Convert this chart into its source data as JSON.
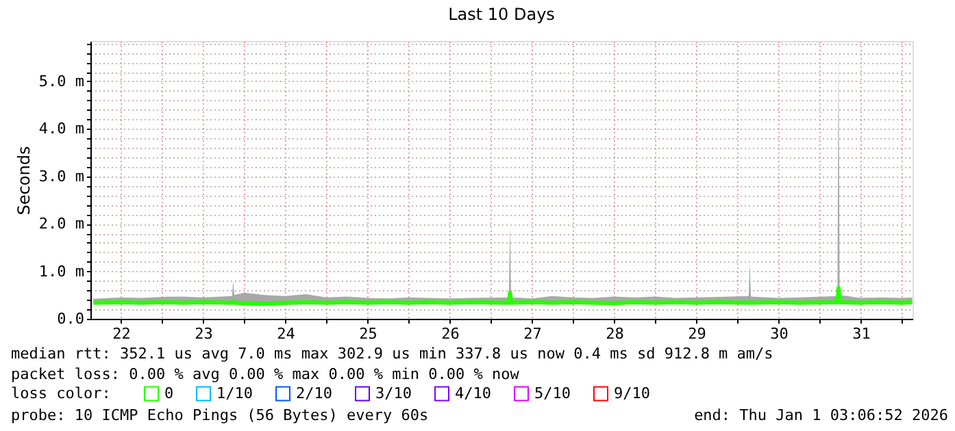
{
  "chart_data": {
    "type": "line",
    "title": "Last 10 Days",
    "ylabel": "Seconds",
    "x": [
      "2025-12-22T04:00",
      "2025-12-22T12:00",
      "2025-12-22T18:00",
      "2025-12-23T00:00",
      "2025-12-23T06:00",
      "2025-12-23T12:00",
      "2025-12-23T20:28",
      "2025-12-23T20:48",
      "2025-12-23T21:08",
      "2025-12-24T00:00",
      "2025-12-24T06:00",
      "2025-12-24T12:00",
      "2025-12-24T18:00",
      "2025-12-25T00:00",
      "2025-12-25T06:00",
      "2025-12-25T12:00",
      "2025-12-25T18:00",
      "2025-12-26T00:00",
      "2025-12-26T06:00",
      "2025-12-26T12:00",
      "2025-12-26T18:00",
      "2025-12-27T05:16",
      "2025-12-27T05:36",
      "2025-12-27T05:56",
      "2025-12-27T12:00",
      "2025-12-27T18:00",
      "2025-12-28T00:00",
      "2025-12-28T06:00",
      "2025-12-28T12:00",
      "2025-12-28T18:00",
      "2025-12-29T00:00",
      "2025-12-29T06:00",
      "2025-12-29T12:00",
      "2025-12-29T18:00",
      "2025-12-30T03:16",
      "2025-12-30T03:36",
      "2025-12-30T03:56",
      "2025-12-30T12:00",
      "2025-12-30T18:00",
      "2025-12-31T05:11",
      "2025-12-31T05:31",
      "2025-12-31T05:51",
      "2025-12-31T12:00",
      "2025-12-31T18:00",
      "2026-01-01T00:00",
      "2026-01-01T03:00"
    ],
    "series": [
      {
        "name": "0",
        "color": "#26ff00",
        "values": [
          0.34,
          0.35,
          0.34,
          0.35,
          0.34,
          0.35,
          0.34,
          0.36,
          0.34,
          0.33,
          0.32,
          0.34,
          0.35,
          0.34,
          0.35,
          0.34,
          0.35,
          0.34,
          0.35,
          0.34,
          0.35,
          0.34,
          0.55,
          0.34,
          0.35,
          0.34,
          0.35,
          0.34,
          0.33,
          0.35,
          0.34,
          0.35,
          0.34,
          0.35,
          0.34,
          0.35,
          0.34,
          0.35,
          0.34,
          0.35,
          0.65,
          0.35,
          0.34,
          0.35,
          0.34,
          0.35
        ],
        "lower": [
          0.3,
          0.31,
          0.3,
          0.31,
          0.3,
          0.31,
          0.3,
          0.31,
          0.3,
          0.28,
          0.27,
          0.29,
          0.3,
          0.3,
          0.31,
          0.3,
          0.31,
          0.3,
          0.31,
          0.3,
          0.31,
          0.3,
          0.32,
          0.3,
          0.31,
          0.3,
          0.31,
          0.3,
          0.29,
          0.31,
          0.3,
          0.31,
          0.3,
          0.31,
          0.3,
          0.31,
          0.3,
          0.31,
          0.3,
          0.31,
          0.33,
          0.31,
          0.3,
          0.31,
          0.3,
          0.31
        ],
        "upper": [
          0.42,
          0.45,
          0.44,
          0.46,
          0.47,
          0.45,
          0.48,
          0.8,
          0.5,
          0.55,
          0.5,
          0.48,
          0.52,
          0.45,
          0.47,
          0.44,
          0.43,
          0.45,
          0.44,
          0.43,
          0.44,
          0.45,
          1.95,
          0.45,
          0.43,
          0.48,
          0.45,
          0.44,
          0.47,
          0.45,
          0.47,
          0.44,
          0.45,
          0.46,
          0.48,
          1.18,
          0.47,
          0.44,
          0.45,
          0.48,
          5.78,
          0.5,
          0.44,
          0.45,
          0.44,
          0.45
        ]
      },
      {
        "name": "1/10",
        "color": "#00b8ff",
        "values": [
          null,
          null,
          null,
          null,
          null,
          null,
          null,
          null,
          null,
          null,
          null,
          null,
          null,
          null,
          null,
          null,
          null,
          null,
          null,
          null,
          null,
          null,
          null,
          null,
          null,
          null,
          null,
          null,
          null,
          null,
          null,
          null,
          null,
          null,
          null,
          null,
          null,
          null,
          null,
          null,
          null,
          null,
          null,
          null,
          null,
          null
        ]
      },
      {
        "name": "2/10",
        "color": "#0059ff",
        "values": [
          null,
          null,
          null,
          null,
          null,
          null,
          null,
          null,
          null,
          null,
          null,
          null,
          null,
          null,
          null,
          null,
          null,
          null,
          null,
          null,
          null,
          null,
          null,
          null,
          null,
          null,
          null,
          null,
          null,
          null,
          null,
          null,
          null,
          null,
          null,
          null,
          null,
          null,
          null,
          null,
          null,
          null,
          null,
          null,
          null,
          null
        ]
      },
      {
        "name": "3/10",
        "color": "#5e00ff",
        "values": [
          null,
          null,
          null,
          null,
          null,
          null,
          null,
          null,
          null,
          null,
          null,
          null,
          null,
          null,
          null,
          null,
          null,
          null,
          null,
          null,
          null,
          null,
          null,
          null,
          null,
          null,
          null,
          null,
          null,
          null,
          null,
          null,
          null,
          null,
          null,
          null,
          null,
          null,
          null,
          null,
          null,
          null,
          null,
          null,
          null,
          null
        ]
      },
      {
        "name": "4/10",
        "color": "#7e00ff",
        "values": [
          null,
          null,
          null,
          null,
          null,
          null,
          null,
          null,
          null,
          null,
          null,
          null,
          null,
          null,
          null,
          null,
          null,
          null,
          null,
          null,
          null,
          null,
          null,
          null,
          null,
          null,
          null,
          null,
          null,
          null,
          null,
          null,
          null,
          null,
          null,
          null,
          null,
          null,
          null,
          null,
          null,
          null,
          null,
          null,
          null,
          null
        ]
      },
      {
        "name": "5/10",
        "color": "#dd00ff",
        "values": [
          null,
          null,
          null,
          null,
          null,
          null,
          null,
          null,
          null,
          null,
          null,
          null,
          null,
          null,
          null,
          null,
          null,
          null,
          null,
          null,
          null,
          null,
          null,
          null,
          null,
          null,
          null,
          null,
          null,
          null,
          null,
          null,
          null,
          null,
          null,
          null,
          null,
          null,
          null,
          null,
          null,
          null,
          null,
          null,
          null,
          null
        ]
      },
      {
        "name": "9/10",
        "color": "#ff0000",
        "values": [
          null,
          null,
          null,
          null,
          null,
          null,
          null,
          null,
          null,
          null,
          null,
          null,
          null,
          null,
          null,
          null,
          null,
          null,
          null,
          null,
          null,
          null,
          null,
          null,
          null,
          null,
          null,
          null,
          null,
          null,
          null,
          null,
          null,
          null,
          null,
          null,
          null,
          null,
          null,
          null,
          null,
          null,
          null,
          null,
          null,
          null
        ]
      }
    ],
    "legend_title": "loss color:",
    "legend": "bottom",
    "xlim": [
      "2025-12-22T03:07",
      "2026-01-01T03:07"
    ],
    "xticks": [
      {
        "value": "2025-12-22T12:00",
        "label": "22"
      },
      {
        "value": "2025-12-23T00:00",
        "label": null
      },
      {
        "value": "2025-12-23T12:00",
        "label": "23"
      },
      {
        "value": "2025-12-24T00:00",
        "label": null
      },
      {
        "value": "2025-12-24T12:00",
        "label": "24"
      },
      {
        "value": "2025-12-25T00:00",
        "label": null
      },
      {
        "value": "2025-12-25T12:00",
        "label": "25"
      },
      {
        "value": "2025-12-26T00:00",
        "label": null
      },
      {
        "value": "2025-12-26T12:00",
        "label": "26"
      },
      {
        "value": "2025-12-27T00:00",
        "label": null
      },
      {
        "value": "2025-12-27T12:00",
        "label": "27"
      },
      {
        "value": "2025-12-28T00:00",
        "label": null
      },
      {
        "value": "2025-12-28T12:00",
        "label": "28"
      },
      {
        "value": "2025-12-29T00:00",
        "label": null
      },
      {
        "value": "2025-12-29T12:00",
        "label": "29"
      },
      {
        "value": "2025-12-30T00:00",
        "label": null
      },
      {
        "value": "2025-12-30T12:00",
        "label": "30"
      },
      {
        "value": "2025-12-31T00:00",
        "label": null
      },
      {
        "value": "2025-12-31T12:00",
        "label": "31"
      },
      {
        "value": "2026-01-01T00:00",
        "label": null
      }
    ],
    "ylim": [
      0,
      5.85
    ],
    "yticks": [
      {
        "value": 0,
        "label": "0.0"
      },
      {
        "value": 0.2,
        "label": null
      },
      {
        "value": 0.4,
        "label": null
      },
      {
        "value": 0.6,
        "label": null
      },
      {
        "value": 0.8,
        "label": null
      },
      {
        "value": 1,
        "label": "1.0 m"
      },
      {
        "value": 1.2,
        "label": null
      },
      {
        "value": 1.4,
        "label": null
      },
      {
        "value": 1.6,
        "label": null
      },
      {
        "value": 1.8,
        "label": null
      },
      {
        "value": 2,
        "label": "2.0 m"
      },
      {
        "value": 2.2,
        "label": null
      },
      {
        "value": 2.4,
        "label": null
      },
      {
        "value": 2.6,
        "label": null
      },
      {
        "value": 2.8,
        "label": null
      },
      {
        "value": 3,
        "label": "3.0 m"
      },
      {
        "value": 3.2,
        "label": null
      },
      {
        "value": 3.4,
        "label": null
      },
      {
        "value": 3.6,
        "label": null
      },
      {
        "value": 3.8,
        "label": null
      },
      {
        "value": 4,
        "label": "4.0 m"
      },
      {
        "value": 4.2,
        "label": null
      },
      {
        "value": 4.4,
        "label": null
      },
      {
        "value": 4.6,
        "label": null
      },
      {
        "value": 4.8,
        "label": null
      },
      {
        "value": 5,
        "label": "5.0 m"
      },
      {
        "value": 5.2,
        "label": null
      },
      {
        "value": 5.4,
        "label": null
      },
      {
        "value": 5.6,
        "label": null
      },
      {
        "value": 5.8,
        "label": null
      }
    ],
    "grid": true,
    "marker": "none",
    "line_style": "solid",
    "annotations": [
      "median rtt:  352.1 us avg   7.0 ms max   302.9 us min   337.8 us now   0.4 ms sd   912.8 m am/s",
      "packet loss: 0.00 % avg   0.00 % max   0.00 % min   0.00 % now",
      "probe:       10 ICMP Echo Pings (56 Bytes) every 60s",
      "end: Thu Jan  1 03:06:52 2026"
    ]
  }
}
